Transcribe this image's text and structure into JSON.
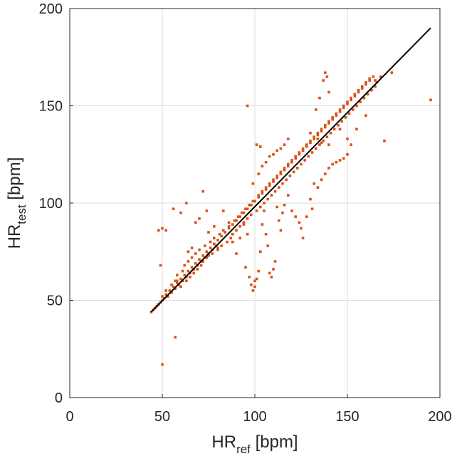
{
  "chart_data": {
    "type": "scatter",
    "title": "",
    "xlabel_main": "HR",
    "xlabel_sub": "ref",
    "xlabel_unit": " [bpm]",
    "ylabel_main": "HR",
    "ylabel_sub": "test",
    "ylabel_unit": " [bpm]",
    "xlim": [
      0,
      200
    ],
    "ylim": [
      0,
      200
    ],
    "xticks": [
      0,
      50,
      100,
      150,
      200
    ],
    "yticks": [
      0,
      50,
      100,
      150,
      200
    ],
    "grid": true,
    "colors": {
      "points": "#D95319",
      "fit_line": "#000000",
      "axis": "#262626",
      "grid": "#dcdcdc"
    },
    "series": [
      {
        "type": "scatter",
        "points": [
          [
            44,
            44
          ],
          [
            45,
            45
          ],
          [
            46,
            46
          ],
          [
            47,
            47
          ],
          [
            48,
            48
          ],
          [
            49,
            49
          ],
          [
            50,
            50
          ],
          [
            51,
            51
          ],
          [
            52,
            53
          ],
          [
            53,
            52
          ],
          [
            54,
            55
          ],
          [
            55,
            54
          ],
          [
            56,
            57
          ],
          [
            57,
            56
          ],
          [
            58,
            59
          ],
          [
            59,
            58
          ],
          [
            60,
            61
          ],
          [
            61,
            60
          ],
          [
            62,
            63
          ],
          [
            63,
            62
          ],
          [
            64,
            65
          ],
          [
            65,
            64
          ],
          [
            66,
            67
          ],
          [
            67,
            66
          ],
          [
            68,
            69
          ],
          [
            69,
            68
          ],
          [
            70,
            71
          ],
          [
            71,
            70
          ],
          [
            72,
            73
          ],
          [
            73,
            72
          ],
          [
            74,
            75
          ],
          [
            75,
            74
          ],
          [
            76,
            77
          ],
          [
            77,
            76
          ],
          [
            78,
            79
          ],
          [
            79,
            78
          ],
          [
            80,
            81
          ],
          [
            82,
            83
          ],
          [
            84,
            85
          ],
          [
            86,
            87
          ],
          [
            88,
            89
          ],
          [
            90,
            91
          ],
          [
            92,
            93
          ],
          [
            94,
            95
          ],
          [
            96,
            97
          ],
          [
            98,
            99
          ],
          [
            100,
            101
          ],
          [
            102,
            103
          ],
          [
            104,
            105
          ],
          [
            106,
            107
          ],
          [
            108,
            109
          ],
          [
            110,
            111
          ],
          [
            112,
            113
          ],
          [
            114,
            115
          ],
          [
            116,
            117
          ],
          [
            118,
            119
          ],
          [
            120,
            121
          ],
          [
            122,
            123
          ],
          [
            124,
            125
          ],
          [
            126,
            127
          ],
          [
            128,
            129
          ],
          [
            130,
            131
          ],
          [
            132,
            133
          ],
          [
            134,
            135
          ],
          [
            136,
            137
          ],
          [
            138,
            139
          ],
          [
            140,
            141
          ],
          [
            142,
            143
          ],
          [
            144,
            145
          ],
          [
            146,
            147
          ],
          [
            148,
            149
          ],
          [
            150,
            151
          ],
          [
            152,
            153
          ],
          [
            154,
            155
          ],
          [
            156,
            157
          ],
          [
            158,
            159
          ],
          [
            160,
            161
          ],
          [
            162,
            163
          ],
          [
            164,
            165
          ],
          [
            50,
            52
          ],
          [
            52,
            55
          ],
          [
            55,
            58
          ],
          [
            57,
            60
          ],
          [
            58,
            63
          ],
          [
            60,
            57
          ],
          [
            61,
            65
          ],
          [
            62,
            68
          ],
          [
            63,
            60
          ],
          [
            64,
            70
          ],
          [
            65,
            62
          ],
          [
            66,
            72
          ],
          [
            67,
            64
          ],
          [
            68,
            74
          ],
          [
            69,
            66
          ],
          [
            70,
            76
          ],
          [
            71,
            68
          ],
          [
            72,
            70
          ],
          [
            73,
            78
          ],
          [
            74,
            72
          ],
          [
            75,
            73
          ],
          [
            76,
            80
          ],
          [
            77,
            74
          ],
          [
            78,
            82
          ],
          [
            80,
            76
          ],
          [
            81,
            84
          ],
          [
            82,
            78
          ],
          [
            83,
            86
          ],
          [
            85,
            80
          ],
          [
            86,
            88
          ],
          [
            87,
            82
          ],
          [
            88,
            84
          ],
          [
            89,
            91
          ],
          [
            90,
            86
          ],
          [
            91,
            93
          ],
          [
            92,
            88
          ],
          [
            93,
            95
          ],
          [
            94,
            90
          ],
          [
            95,
            97
          ],
          [
            96,
            92
          ],
          [
            97,
            99
          ],
          [
            98,
            94
          ],
          [
            99,
            101
          ],
          [
            101,
            96
          ],
          [
            102,
            104
          ],
          [
            103,
            98
          ],
          [
            104,
            106
          ],
          [
            105,
            100
          ],
          [
            106,
            108
          ],
          [
            107,
            102
          ],
          [
            108,
            110
          ],
          [
            109,
            104
          ],
          [
            110,
            112
          ],
          [
            111,
            106
          ],
          [
            112,
            114
          ],
          [
            113,
            108
          ],
          [
            114,
            116
          ],
          [
            115,
            110
          ],
          [
            116,
            118
          ],
          [
            117,
            112
          ],
          [
            118,
            120
          ],
          [
            119,
            114
          ],
          [
            120,
            122
          ],
          [
            121,
            116
          ],
          [
            122,
            124
          ],
          [
            123,
            118
          ],
          [
            124,
            126
          ],
          [
            125,
            120
          ],
          [
            126,
            128
          ],
          [
            127,
            122
          ],
          [
            128,
            130
          ],
          [
            129,
            124
          ],
          [
            130,
            132
          ],
          [
            131,
            126
          ],
          [
            132,
            134
          ],
          [
            133,
            128
          ],
          [
            134,
            136
          ],
          [
            135,
            130
          ],
          [
            136,
            138
          ],
          [
            137,
            132
          ],
          [
            138,
            140
          ],
          [
            139,
            134
          ],
          [
            140,
            142
          ],
          [
            141,
            136
          ],
          [
            142,
            144
          ],
          [
            143,
            138
          ],
          [
            144,
            146
          ],
          [
            145,
            140
          ],
          [
            146,
            148
          ],
          [
            147,
            142
          ],
          [
            148,
            150
          ],
          [
            149,
            144
          ],
          [
            150,
            152
          ],
          [
            151,
            146
          ],
          [
            152,
            154
          ],
          [
            153,
            148
          ],
          [
            154,
            156
          ],
          [
            155,
            150
          ],
          [
            156,
            158
          ],
          [
            157,
            152
          ],
          [
            158,
            160
          ],
          [
            159,
            154
          ],
          [
            160,
            162
          ],
          [
            161,
            156
          ],
          [
            162,
            164
          ],
          [
            163,
            158
          ],
          [
            165,
            163
          ],
          [
            166,
            162
          ],
          [
            48,
            86
          ],
          [
            49,
            68
          ],
          [
            50,
            87
          ],
          [
            52,
            86
          ],
          [
            56,
            97
          ],
          [
            58,
            60
          ],
          [
            60,
            95
          ],
          [
            63,
            100
          ],
          [
            64,
            75
          ],
          [
            66,
            77
          ],
          [
            68,
            90
          ],
          [
            70,
            92
          ],
          [
            72,
            106
          ],
          [
            74,
            96
          ],
          [
            75,
            85
          ],
          [
            78,
            88
          ],
          [
            80,
            77
          ],
          [
            83,
            96
          ],
          [
            86,
            90
          ],
          [
            88,
            80
          ],
          [
            90,
            74
          ],
          [
            92,
            82
          ],
          [
            94,
            89
          ],
          [
            95,
            67
          ],
          [
            96,
            84
          ],
          [
            97,
            62
          ],
          [
            98,
            58
          ],
          [
            99,
            55
          ],
          [
            100,
            57
          ],
          [
            100,
            60
          ],
          [
            101,
            61
          ],
          [
            102,
            65
          ],
          [
            103,
            75
          ],
          [
            104,
            89
          ],
          [
            105,
            96
          ],
          [
            106,
            84
          ],
          [
            107,
            78
          ],
          [
            108,
            64
          ],
          [
            109,
            62
          ],
          [
            110,
            66
          ],
          [
            111,
            70
          ],
          [
            112,
            98
          ],
          [
            113,
            91
          ],
          [
            114,
            86
          ],
          [
            115,
            95
          ],
          [
            116,
            99
          ],
          [
            118,
            104
          ],
          [
            120,
            96
          ],
          [
            122,
            93
          ],
          [
            124,
            90
          ],
          [
            125,
            87
          ],
          [
            126,
            82
          ],
          [
            128,
            93
          ],
          [
            130,
            102
          ],
          [
            131,
            97
          ],
          [
            132,
            110
          ],
          [
            134,
            108
          ],
          [
            136,
            112
          ],
          [
            138,
            115
          ],
          [
            140,
            118
          ],
          [
            142,
            120
          ],
          [
            144,
            121
          ],
          [
            146,
            122
          ],
          [
            148,
            123
          ],
          [
            150,
            125
          ],
          [
            140,
            130
          ],
          [
            136,
            131
          ],
          [
            134,
            133
          ],
          [
            130,
            136
          ],
          [
            133,
            148
          ],
          [
            135,
            154
          ],
          [
            137,
            163
          ],
          [
            138,
            167
          ],
          [
            139,
            165
          ],
          [
            140,
            157
          ],
          [
            146,
            138
          ],
          [
            150,
            133
          ],
          [
            152,
            130
          ],
          [
            155,
            138
          ],
          [
            160,
            145
          ],
          [
            165,
            160
          ],
          [
            168,
            165
          ],
          [
            170,
            132
          ],
          [
            174,
            167
          ],
          [
            195,
            153
          ],
          [
            50,
            17
          ],
          [
            57,
            31
          ],
          [
            103,
            129
          ],
          [
            101,
            130
          ],
          [
            96,
            150
          ],
          [
            99,
            110
          ],
          [
            102,
            115
          ],
          [
            104,
            119
          ],
          [
            106,
            121
          ],
          [
            108,
            124
          ],
          [
            110,
            125
          ],
          [
            112,
            127
          ],
          [
            114,
            128
          ],
          [
            116,
            130
          ],
          [
            118,
            133
          ]
        ]
      },
      {
        "type": "line",
        "points": [
          [
            44,
            44
          ],
          [
            195,
            190
          ]
        ]
      }
    ]
  }
}
